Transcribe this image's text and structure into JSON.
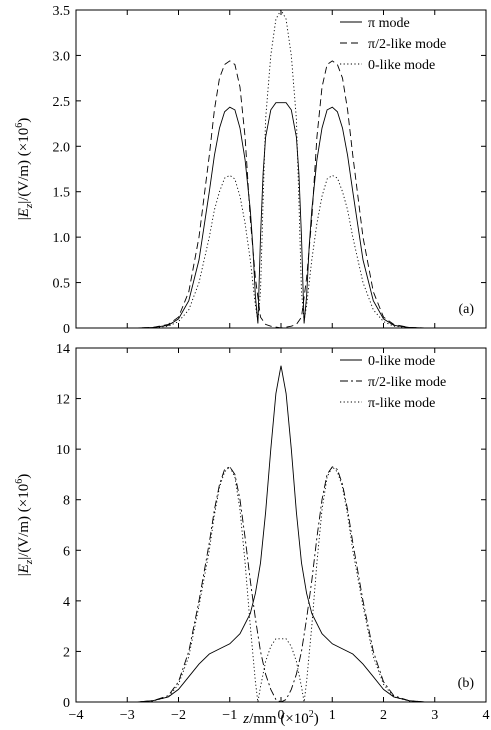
{
  "chart_data": [
    {
      "type": "line",
      "panel_label": "(a)",
      "ylabel": "|E_z|/(V/m) (×10^6)",
      "ylabel_parts": {
        "lead": "|",
        "symbol": "E",
        "sub": "z",
        "mid": "|/(V/m)  (×10",
        "sup": "6",
        "tail": ")"
      },
      "xlim": [
        -4,
        4
      ],
      "ylim": [
        0,
        3.5
      ],
      "yticks": [
        0,
        0.5,
        1.0,
        1.5,
        2.0,
        2.5,
        3.0,
        3.5
      ],
      "ytick_labels": [
        "0",
        "0.5",
        "1.0",
        "1.5",
        "2.0",
        "2.5",
        "3.0",
        "3.5"
      ],
      "legend_position": "top-right",
      "series": [
        {
          "name": "π mode",
          "style": "solid",
          "x": [
            -4,
            -2.8,
            -2.5,
            -2.2,
            -2.0,
            -1.8,
            -1.6,
            -1.4,
            -1.3,
            -1.2,
            -1.1,
            -1.0,
            -0.9,
            -0.8,
            -0.7,
            -0.6,
            -0.55,
            -0.5,
            -0.45,
            -0.4,
            -0.35,
            -0.3,
            -0.2,
            -0.1,
            0,
            0.1,
            0.2,
            0.3,
            0.35,
            0.4,
            0.45,
            0.5,
            0.55,
            0.6,
            0.7,
            0.8,
            0.9,
            1.0,
            1.1,
            1.2,
            1.3,
            1.4,
            1.6,
            1.8,
            2.0,
            2.2,
            2.5,
            2.8,
            4
          ],
          "y": [
            0,
            0,
            0.005,
            0.03,
            0.1,
            0.3,
            0.75,
            1.5,
            1.9,
            2.2,
            2.38,
            2.43,
            2.4,
            2.2,
            1.85,
            1.3,
            0.9,
            0.35,
            0.05,
            1.0,
            1.7,
            2.1,
            2.4,
            2.48,
            2.48,
            2.48,
            2.4,
            2.1,
            1.7,
            1.0,
            0.05,
            0.35,
            0.9,
            1.3,
            1.85,
            2.2,
            2.4,
            2.43,
            2.38,
            2.2,
            1.9,
            1.5,
            0.75,
            0.3,
            0.1,
            0.03,
            0.005,
            0,
            0
          ]
        },
        {
          "name": "π/2-like mode",
          "style": "dashed",
          "x": [
            -4,
            -2.8,
            -2.5,
            -2.2,
            -2.0,
            -1.8,
            -1.6,
            -1.4,
            -1.3,
            -1.2,
            -1.1,
            -1.0,
            -0.9,
            -0.8,
            -0.7,
            -0.6,
            -0.5,
            -0.4,
            -0.3,
            -0.2,
            -0.1,
            0,
            0.1,
            0.2,
            0.3,
            0.4,
            0.5,
            0.6,
            0.7,
            0.8,
            0.9,
            1.0,
            1.1,
            1.2,
            1.3,
            1.4,
            1.6,
            1.8,
            2.0,
            2.2,
            2.5,
            2.8,
            4
          ],
          "y": [
            0,
            0,
            0.005,
            0.04,
            0.12,
            0.4,
            1.0,
            1.9,
            2.4,
            2.75,
            2.9,
            2.94,
            2.9,
            2.65,
            2.1,
            1.2,
            0.55,
            0.12,
            0.04,
            0.02,
            0.01,
            0,
            0.01,
            0.02,
            0.04,
            0.12,
            0.55,
            1.2,
            2.1,
            2.65,
            2.9,
            2.94,
            2.9,
            2.75,
            2.4,
            1.9,
            1.0,
            0.4,
            0.12,
            0.04,
            0.005,
            0,
            0
          ]
        },
        {
          "name": "0-like mode",
          "style": "dotted",
          "x": [
            -4,
            -2.8,
            -2.5,
            -2.2,
            -2.0,
            -1.8,
            -1.6,
            -1.4,
            -1.3,
            -1.2,
            -1.1,
            -1.0,
            -0.9,
            -0.8,
            -0.7,
            -0.6,
            -0.55,
            -0.5,
            -0.45,
            -0.4,
            -0.35,
            -0.3,
            -0.2,
            -0.1,
            0,
            0.1,
            0.2,
            0.3,
            0.35,
            0.4,
            0.45,
            0.5,
            0.55,
            0.6,
            0.7,
            0.8,
            0.9,
            1.0,
            1.1,
            1.2,
            1.3,
            1.4,
            1.6,
            1.8,
            2.0,
            2.2,
            2.5,
            2.8,
            4
          ],
          "y": [
            0,
            0,
            0.003,
            0.02,
            0.07,
            0.2,
            0.5,
            1.0,
            1.3,
            1.5,
            1.65,
            1.68,
            1.64,
            1.45,
            1.15,
            0.75,
            0.5,
            0.25,
            0.08,
            0.4,
            1.4,
            2.3,
            3.0,
            3.4,
            3.5,
            3.4,
            3.0,
            2.3,
            1.4,
            0.4,
            0.08,
            0.25,
            0.5,
            0.75,
            1.15,
            1.45,
            1.64,
            1.68,
            1.65,
            1.5,
            1.3,
            1.0,
            0.5,
            0.2,
            0.07,
            0.02,
            0.003,
            0,
            0
          ]
        }
      ]
    },
    {
      "type": "line",
      "panel_label": "(b)",
      "xlabel": "z/mm (×10^2)",
      "xlabel_parts": {
        "symbol": "z",
        "mid": "/mm  (×10",
        "sup": "2",
        "tail": ")"
      },
      "ylabel": "|E_z|/(V/m) (×10^6)",
      "ylabel_parts": {
        "lead": "|",
        "symbol": "E",
        "sub": "z",
        "mid": "|/(V/m)  (×10",
        "sup": "6",
        "tail": ")"
      },
      "xlim": [
        -4,
        4
      ],
      "ylim": [
        0,
        14
      ],
      "xticks": [
        -4,
        -3,
        -2,
        -1,
        0,
        1,
        2,
        3,
        4
      ],
      "xtick_labels": [
        "−4",
        "−3",
        "−2",
        "−1",
        "0",
        "1",
        "2",
        "3",
        "4"
      ],
      "yticks": [
        0,
        2,
        4,
        6,
        8,
        10,
        12,
        14
      ],
      "ytick_labels": [
        "0",
        "2",
        "4",
        "6",
        "8",
        "10",
        "12",
        "14"
      ],
      "legend_position": "top-right",
      "series": [
        {
          "name": "0-like mode",
          "style": "solid",
          "x": [
            -4,
            -2.8,
            -2.5,
            -2.2,
            -2.0,
            -1.8,
            -1.6,
            -1.4,
            -1.2,
            -1.0,
            -0.8,
            -0.6,
            -0.5,
            -0.4,
            -0.3,
            -0.2,
            -0.1,
            0,
            0.1,
            0.2,
            0.3,
            0.4,
            0.5,
            0.6,
            0.8,
            1.0,
            1.2,
            1.4,
            1.6,
            1.8,
            2.0,
            2.2,
            2.5,
            2.8,
            4
          ],
          "y": [
            0,
            0,
            0.05,
            0.2,
            0.5,
            1.0,
            1.5,
            1.9,
            2.1,
            2.3,
            2.7,
            3.5,
            4.3,
            5.5,
            7.5,
            10.0,
            12.2,
            13.3,
            12.2,
            10.0,
            7.5,
            5.5,
            4.3,
            3.5,
            2.7,
            2.3,
            2.1,
            1.9,
            1.5,
            1.0,
            0.5,
            0.2,
            0.05,
            0,
            0
          ]
        },
        {
          "name": "π/2-like mode",
          "style": "dashdot",
          "x": [
            -4,
            -2.8,
            -2.5,
            -2.2,
            -2.0,
            -1.8,
            -1.6,
            -1.4,
            -1.3,
            -1.2,
            -1.1,
            -1.0,
            -0.9,
            -0.8,
            -0.7,
            -0.6,
            -0.5,
            -0.4,
            -0.3,
            -0.2,
            -0.1,
            0,
            0.1,
            0.2,
            0.3,
            0.4,
            0.5,
            0.6,
            0.7,
            0.8,
            0.9,
            1.0,
            1.1,
            1.2,
            1.3,
            1.4,
            1.6,
            1.8,
            2.0,
            2.2,
            2.5,
            2.8,
            4
          ],
          "y": [
            0,
            0,
            0.05,
            0.25,
            0.8,
            2.0,
            4.0,
            6.3,
            7.6,
            8.6,
            9.2,
            9.3,
            9.0,
            8.0,
            6.5,
            4.8,
            3.3,
            2.0,
            1.1,
            0.5,
            0.1,
            0,
            0.1,
            0.5,
            1.1,
            2.0,
            3.3,
            4.8,
            6.5,
            8.0,
            9.0,
            9.3,
            9.2,
            8.6,
            7.6,
            6.3,
            4.0,
            2.0,
            0.8,
            0.25,
            0.05,
            0,
            0
          ]
        },
        {
          "name": "π-like mode",
          "style": "dotted",
          "x": [
            -4,
            -2.8,
            -2.5,
            -2.2,
            -2.0,
            -1.8,
            -1.6,
            -1.4,
            -1.3,
            -1.2,
            -1.1,
            -1.0,
            -0.9,
            -0.8,
            -0.7,
            -0.6,
            -0.5,
            -0.45,
            -0.4,
            -0.3,
            -0.2,
            -0.1,
            0,
            0.1,
            0.2,
            0.3,
            0.4,
            0.45,
            0.5,
            0.6,
            0.7,
            0.8,
            0.9,
            1.0,
            1.1,
            1.2,
            1.3,
            1.4,
            1.6,
            1.8,
            2.0,
            2.2,
            2.5,
            2.8,
            4
          ],
          "y": [
            0,
            0,
            0.04,
            0.2,
            0.7,
            1.8,
            3.8,
            6.0,
            7.4,
            8.5,
            9.1,
            9.3,
            8.9,
            7.6,
            5.5,
            3.0,
            0.8,
            0,
            0.6,
            1.6,
            2.2,
            2.5,
            2.5,
            2.5,
            2.2,
            1.6,
            0.6,
            0,
            0.8,
            3.0,
            5.5,
            7.6,
            8.9,
            9.3,
            9.1,
            8.5,
            7.4,
            6.0,
            3.8,
            1.8,
            0.7,
            0.2,
            0.04,
            0,
            0
          ]
        }
      ]
    }
  ]
}
